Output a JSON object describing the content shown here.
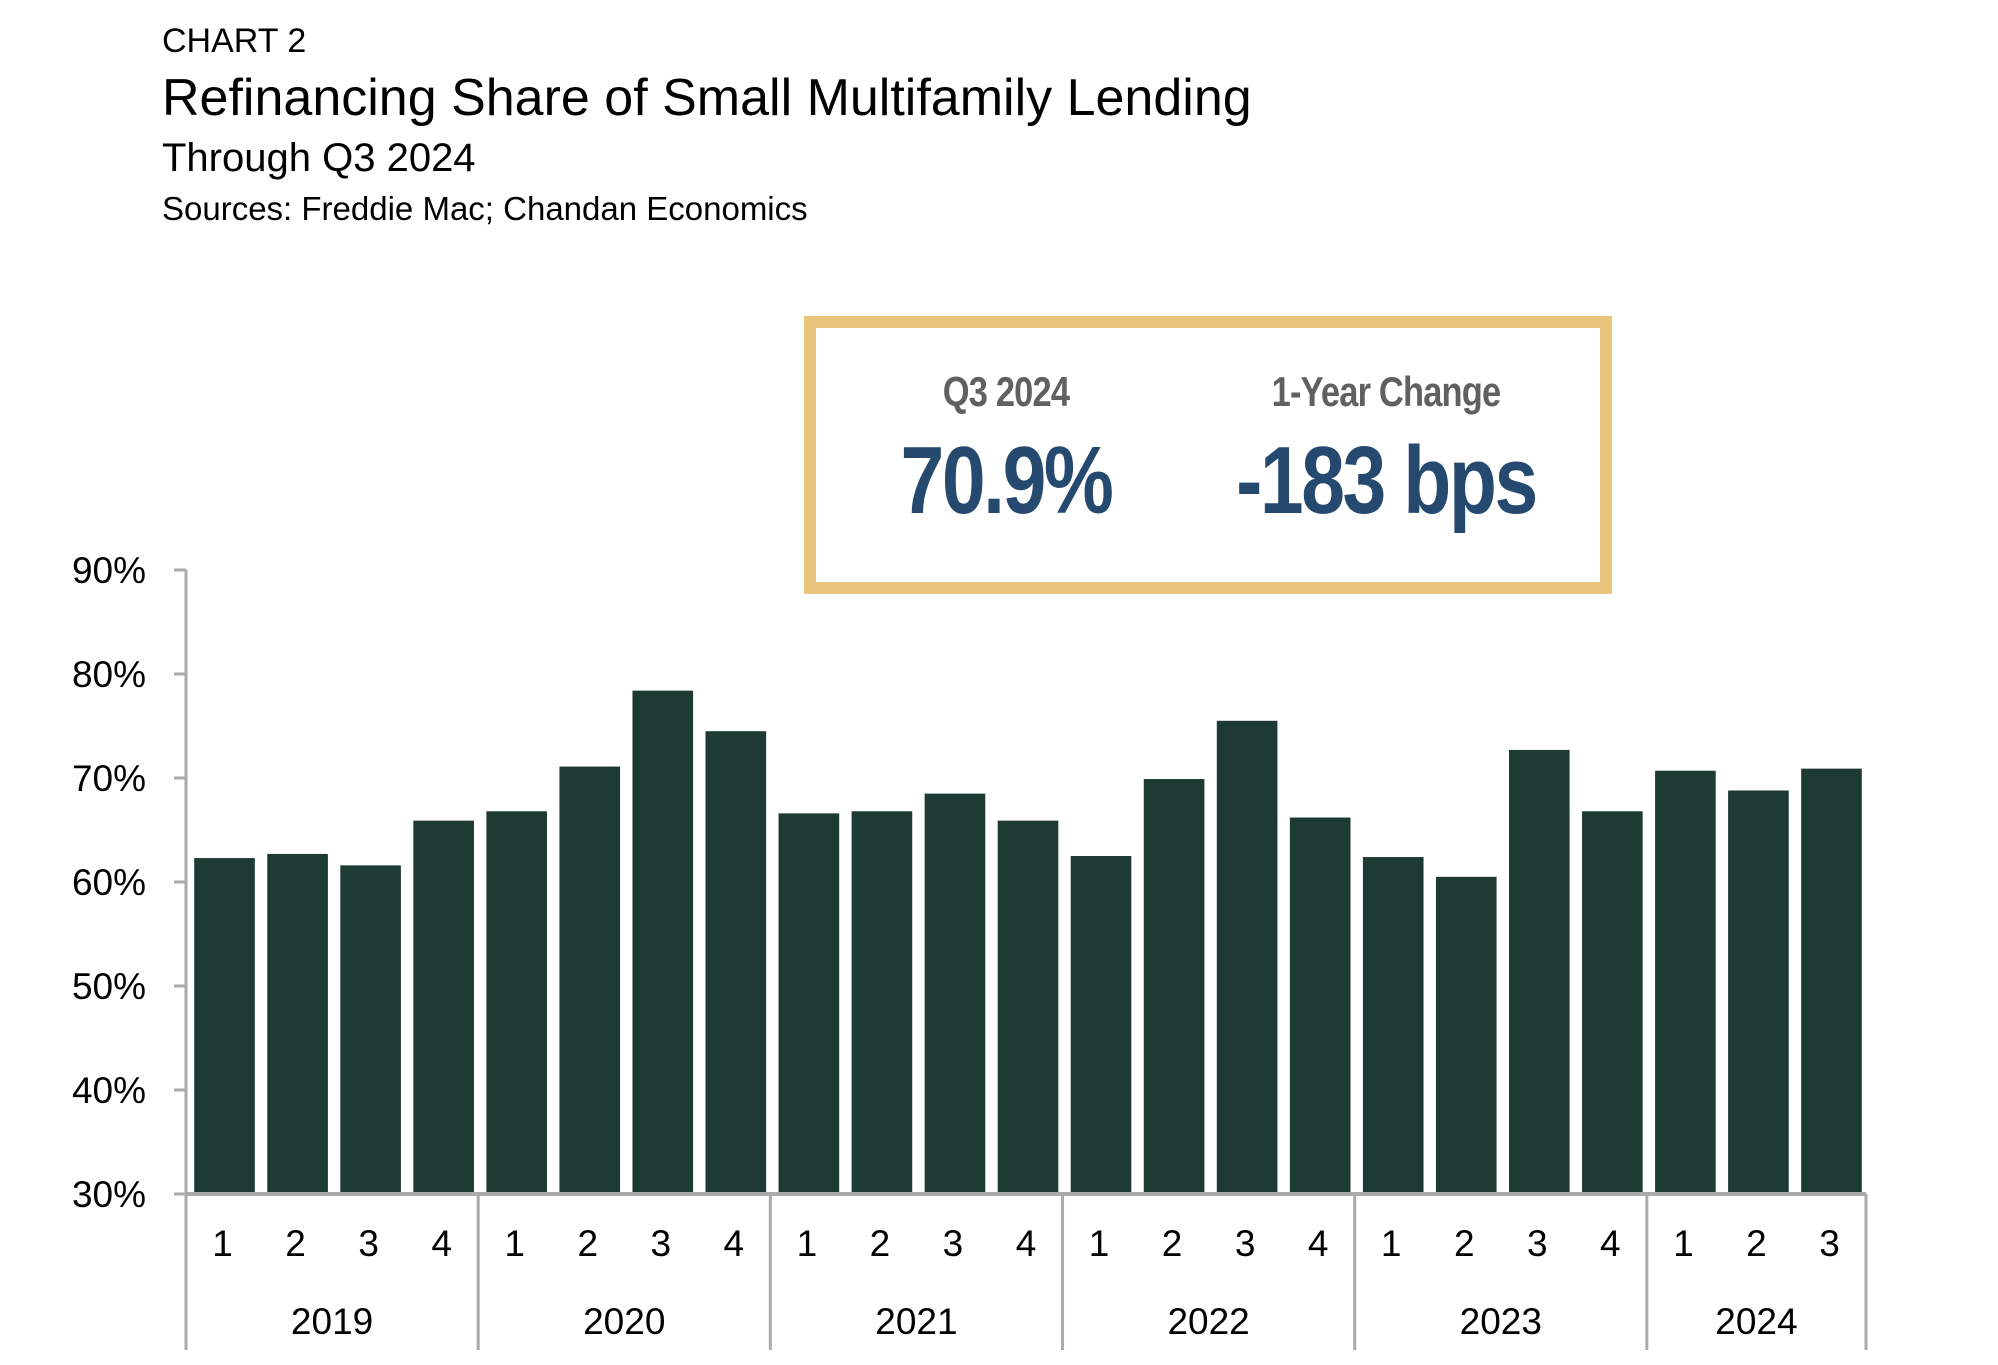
{
  "header": {
    "label": "CHART 2",
    "title": "Refinancing Share of Small Multifamily Lending",
    "subtitle": "Through Q3 2024",
    "sources": "Sources: Freddie Mac; Chandan Economics"
  },
  "kpis": {
    "current": {
      "label": "Q3 2024",
      "value": "70.9%"
    },
    "change": {
      "label": "1-Year Change",
      "value": "-183 bps"
    }
  },
  "colors": {
    "bar": "#1e3b33",
    "kpi_border": "#e8c37a",
    "kpi_value": "#26496f",
    "kpi_label": "#606060",
    "axis": "#aaaaaa"
  },
  "chart_data": {
    "type": "bar",
    "title": "Refinancing Share of Small Multifamily Lending",
    "subtitle": "Through Q3 2024",
    "xlabel": "",
    "ylabel": "",
    "ylim": [
      30,
      90
    ],
    "yticks": [
      30,
      40,
      50,
      60,
      70,
      80,
      90
    ],
    "ytick_format": "{v}%",
    "grid": false,
    "legend": "none",
    "groups": [
      {
        "year": "2019",
        "quarters": [
          "1",
          "2",
          "3",
          "4"
        ]
      },
      {
        "year": "2020",
        "quarters": [
          "1",
          "2",
          "3",
          "4"
        ]
      },
      {
        "year": "2021",
        "quarters": [
          "1",
          "2",
          "3",
          "4"
        ]
      },
      {
        "year": "2022",
        "quarters": [
          "1",
          "2",
          "3",
          "4"
        ]
      },
      {
        "year": "2023",
        "quarters": [
          "1",
          "2",
          "3",
          "4"
        ]
      },
      {
        "year": "2024",
        "quarters": [
          "1",
          "2",
          "3"
        ]
      }
    ],
    "categories": [
      "2019 Q1",
      "2019 Q2",
      "2019 Q3",
      "2019 Q4",
      "2020 Q1",
      "2020 Q2",
      "2020 Q3",
      "2020 Q4",
      "2021 Q1",
      "2021 Q2",
      "2021 Q3",
      "2021 Q4",
      "2022 Q1",
      "2022 Q2",
      "2022 Q3",
      "2022 Q4",
      "2023 Q1",
      "2023 Q2",
      "2023 Q3",
      "2023 Q4",
      "2024 Q1",
      "2024 Q2",
      "2024 Q3"
    ],
    "series": [
      {
        "name": "Refinancing Share (%)",
        "values": [
          62.3,
          62.7,
          61.6,
          65.9,
          66.8,
          71.1,
          78.4,
          74.5,
          66.6,
          66.8,
          68.5,
          65.9,
          62.5,
          69.9,
          75.5,
          66.2,
          62.4,
          60.5,
          72.7,
          66.8,
          70.7,
          68.8,
          70.9
        ]
      }
    ]
  }
}
